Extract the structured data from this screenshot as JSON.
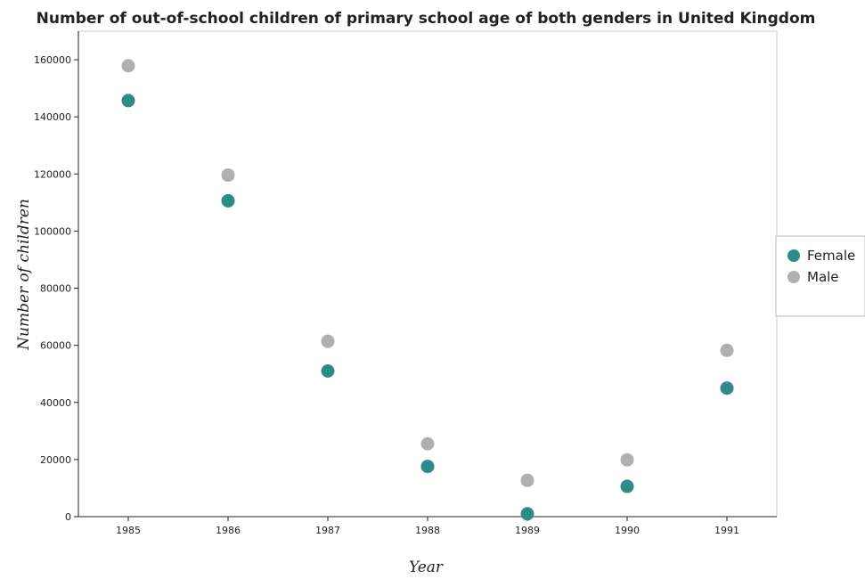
{
  "chart_data": {
    "type": "scatter",
    "title": "Number of out-of-school children of primary school age of both genders in United Kingdom",
    "xlabel": "Year",
    "ylabel": "Number of children",
    "categories": [
      "1985",
      "1986",
      "1987",
      "1988",
      "1989",
      "1990",
      "1991"
    ],
    "series": [
      {
        "name": "Female",
        "color": "#2e8b8b",
        "values": [
          145700,
          110600,
          51000,
          17600,
          1000,
          10600,
          45000
        ]
      },
      {
        "name": "Male",
        "color": "#b0b0b0",
        "values": [
          157900,
          119600,
          61400,
          25500,
          12700,
          19900,
          58200
        ]
      }
    ],
    "ylim": [
      0,
      170000
    ],
    "yticks": [
      0,
      20000,
      40000,
      60000,
      80000,
      100000,
      120000,
      140000,
      160000
    ],
    "ytick_labels": [
      "0",
      "20000",
      "40000",
      "60000",
      "80000",
      "100000",
      "120000",
      "140000",
      "160000"
    ],
    "grid": false,
    "legend_position": "right"
  }
}
